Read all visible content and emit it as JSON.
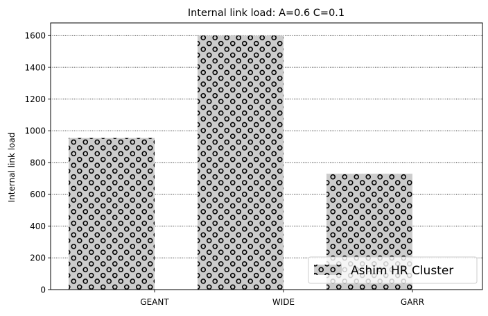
{
  "chart_data": {
    "type": "bar",
    "title": "Internal link load: A=0.6 C=0.1",
    "xlabel": "",
    "ylabel": "Internal link load",
    "categories": [
      "GEANT",
      "WIDE",
      "GARR"
    ],
    "series": [
      {
        "name": "Ashim HR Cluster",
        "values": [
          955,
          1600,
          730
        ],
        "color": "#cccccc",
        "hatch": "circles"
      }
    ],
    "ylim": [
      0,
      1680
    ],
    "yticks": [
      0,
      200,
      400,
      600,
      800,
      1000,
      1200,
      1400,
      1600
    ],
    "grid": {
      "y": true,
      "x": false,
      "style": "dotted"
    },
    "legend": {
      "position": "bottom-right"
    }
  }
}
